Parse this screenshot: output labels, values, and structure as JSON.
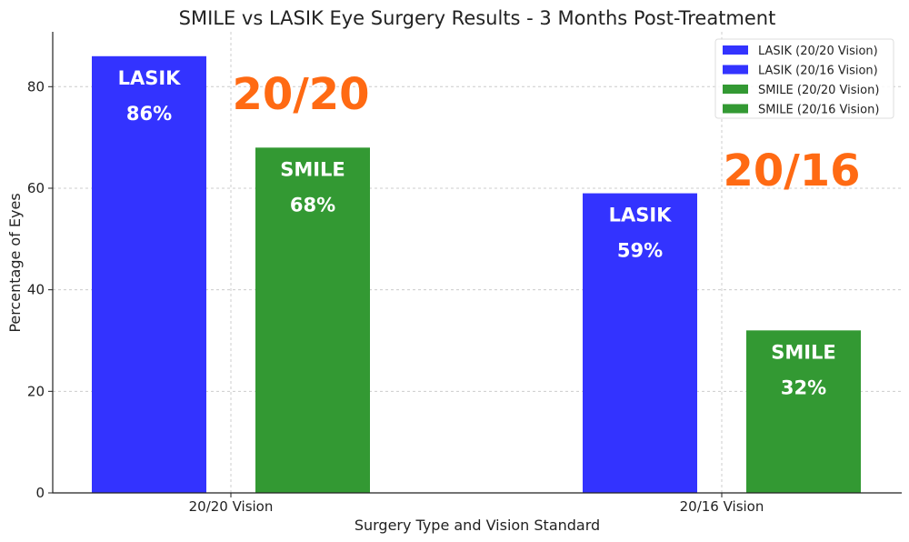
{
  "chart_data": {
    "type": "bar",
    "title": "SMILE vs LASIK Eye Surgery Results - 3 Months Post-Treatment",
    "xlabel": "Surgery Type and Vision Standard",
    "ylabel": "Percentage of Eyes",
    "categories": [
      "20/20 Vision",
      "20/16 Vision"
    ],
    "ylim": [
      0,
      90.8
    ],
    "yticks": [
      0,
      20,
      40,
      60,
      80
    ],
    "grid": true,
    "legend_position": "top-right",
    "bars": [
      {
        "legend": "LASIK (20/20 Vision)",
        "category": 0,
        "slot": 0,
        "value": 86,
        "label": "LASIK",
        "value_label": "86%",
        "color": "#3333ff"
      },
      {
        "legend": "SMILE (20/20 Vision)",
        "category": 0,
        "slot": 1,
        "value": 68,
        "label": "SMILE",
        "value_label": "68%",
        "color": "#339933"
      },
      {
        "legend": "LASIK (20/16 Vision)",
        "category": 1,
        "slot": 0,
        "value": 59,
        "label": "LASIK",
        "value_label": "59%",
        "color": "#3333ff"
      },
      {
        "legend": "SMILE (20/16 Vision)",
        "category": 1,
        "slot": 1,
        "value": 32,
        "label": "SMILE",
        "value_label": "32%",
        "color": "#339933"
      }
    ],
    "legend": [
      {
        "label": "LASIK (20/20 Vision)",
        "color": "#3333ff"
      },
      {
        "label": "LASIK (20/16 Vision)",
        "color": "#3333ff"
      },
      {
        "label": "SMILE (20/20 Vision)",
        "color": "#339933"
      },
      {
        "label": "SMILE (20/16 Vision)",
        "color": "#339933"
      }
    ],
    "annotations": [
      {
        "text": "20/20",
        "category": 0,
        "y": 77,
        "color": "#ff6a13"
      },
      {
        "text": "20/16",
        "category": 1,
        "y": 62,
        "color": "#ff6a13"
      }
    ]
  }
}
